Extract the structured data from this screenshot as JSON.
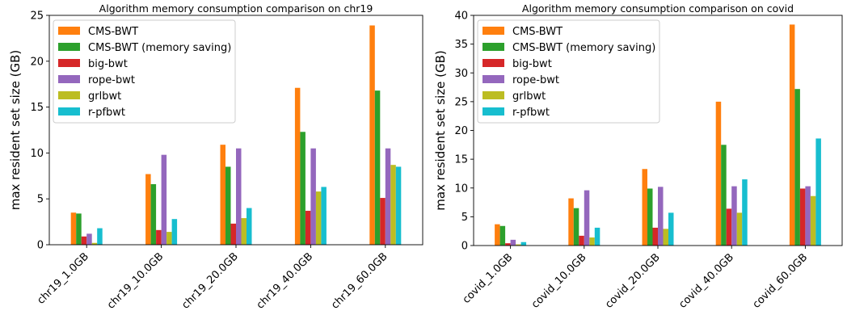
{
  "colors": {
    "CMS-BWT": "#ff7f0e",
    "CMS-BWT (memory saving)": "#2ca02c",
    "big-bwt": "#d62728",
    "rope-bwt": "#9467bd",
    "grlbwt": "#bcbd22",
    "r-pfbwt": "#17becf"
  },
  "chart_data": [
    {
      "type": "bar",
      "title": "Algorithm memory consumption comparison on chr19",
      "xlabel": "",
      "ylabel": "max resident set size (GB)",
      "ylim": [
        0,
        25
      ],
      "yticks": [
        0,
        5,
        10,
        15,
        20,
        25
      ],
      "legend": "top-left",
      "grid": false,
      "categories": [
        "chr19_1.0GB",
        "chr19_10.0GB",
        "chr19_20.0GB",
        "chr19_40.0GB",
        "chr19_60.0GB"
      ],
      "series": [
        {
          "name": "CMS-BWT",
          "values": [
            3.5,
            7.7,
            10.9,
            17.1,
            23.9
          ]
        },
        {
          "name": "CMS-BWT (memory saving)",
          "values": [
            3.4,
            6.6,
            8.5,
            12.3,
            16.8
          ]
        },
        {
          "name": "big-bwt",
          "values": [
            0.9,
            1.6,
            2.3,
            3.7,
            5.1
          ]
        },
        {
          "name": "rope-bwt",
          "values": [
            1.2,
            9.8,
            10.5,
            10.5,
            10.5
          ]
        },
        {
          "name": "grlbwt",
          "values": [
            0.2,
            1.4,
            2.9,
            5.8,
            8.7
          ]
        },
        {
          "name": "r-pfbwt",
          "values": [
            1.8,
            2.8,
            4.0,
            6.3,
            8.5
          ]
        }
      ]
    },
    {
      "type": "bar",
      "title": "Algorithm memory consumption comparison on covid",
      "xlabel": "",
      "ylabel": "max resident set size (GB)",
      "ylim": [
        0,
        40
      ],
      "yticks": [
        0,
        5,
        10,
        15,
        20,
        25,
        30,
        35,
        40
      ],
      "legend": "top-left",
      "grid": false,
      "categories": [
        "covid_1.0GB",
        "covid_10.0GB",
        "covid_20.0GB",
        "covid_40.0GB",
        "covid_60.0GB"
      ],
      "series": [
        {
          "name": "CMS-BWT",
          "values": [
            3.7,
            8.2,
            13.3,
            25.0,
            38.4
          ]
        },
        {
          "name": "CMS-BWT (memory saving)",
          "values": [
            3.4,
            6.5,
            9.9,
            17.5,
            27.2
          ]
        },
        {
          "name": "big-bwt",
          "values": [
            0.4,
            1.7,
            3.1,
            6.4,
            9.9
          ]
        },
        {
          "name": "rope-bwt",
          "values": [
            1.0,
            9.6,
            10.2,
            10.3,
            10.3
          ]
        },
        {
          "name": "grlbwt",
          "values": [
            0.2,
            1.4,
            2.9,
            5.7,
            8.6
          ]
        },
        {
          "name": "r-pfbwt",
          "values": [
            0.6,
            3.1,
            5.7,
            11.5,
            18.6
          ]
        }
      ]
    }
  ]
}
